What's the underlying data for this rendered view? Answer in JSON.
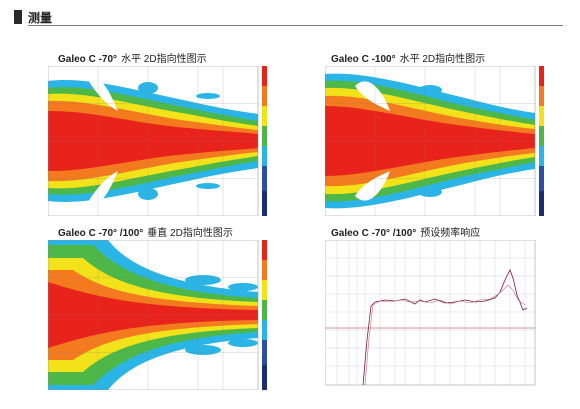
{
  "header": {
    "title": "测量"
  },
  "plots": [
    {
      "title": "Galeo C -70°",
      "subtitle": "水平 2D指向性图示"
    },
    {
      "title": "Galeo C -100°",
      "subtitle": "水平 2D指向性图示"
    },
    {
      "title": "Galeo C -70°  /100°",
      "subtitle": "垂直 2D指向性图示"
    },
    {
      "title": "Galeo C -70°  /100°",
      "subtitle": "预设频率响应"
    }
  ],
  "colors": {
    "red": "#e8231b",
    "orange": "#f47a1f",
    "yellow": "#f2e21a",
    "green": "#4db848",
    "cyan": "#2bb5e6",
    "blue": "#2d4fa3",
    "grid": "#c9c9c9",
    "response_line": "#7a1a33",
    "response_line2": "#c26f86"
  }
}
